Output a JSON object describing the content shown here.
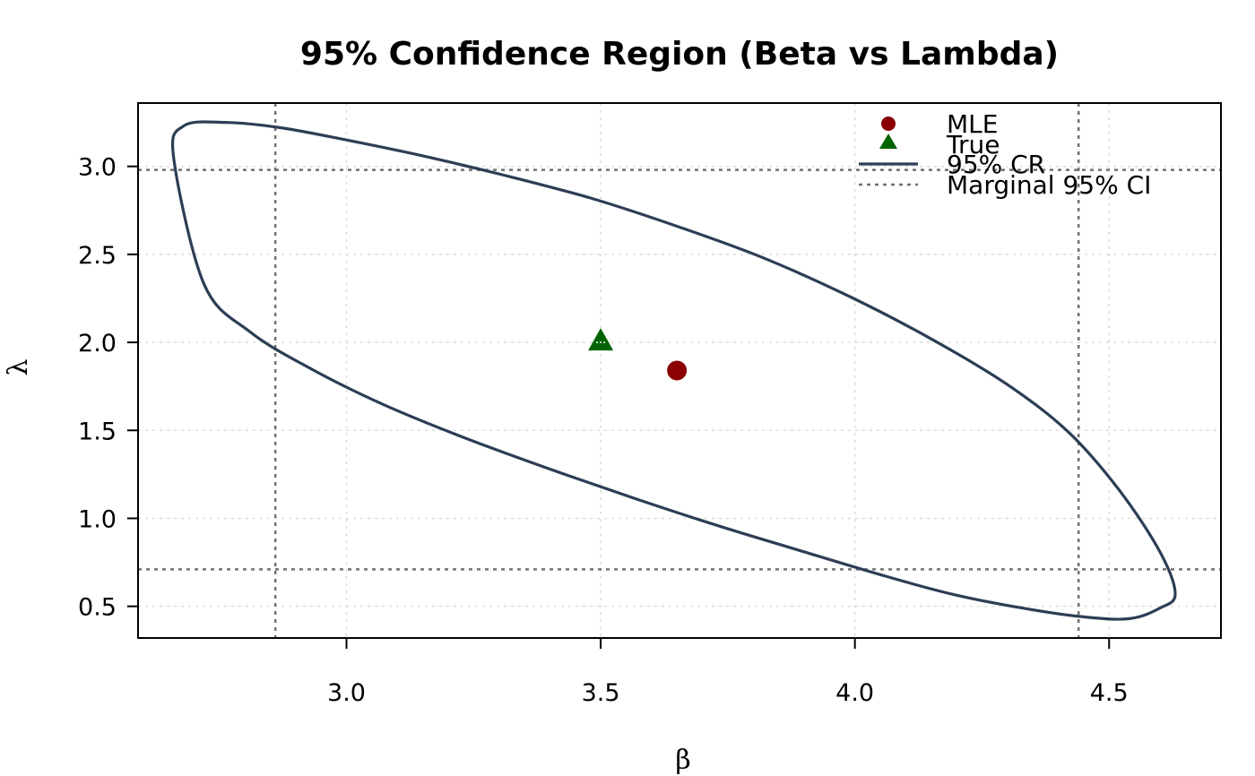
{
  "chart_data": {
    "type": "scatter",
    "title": "95% Confidence Region (Beta vs Lambda)",
    "xlabel": "β",
    "ylabel": "λ",
    "xlim": [
      2.59,
      4.72
    ],
    "ylim": [
      0.32,
      3.36
    ],
    "xticks": [
      3.0,
      3.5,
      4.0,
      4.5
    ],
    "xtick_labels": [
      "3.0",
      "3.5",
      "4.0",
      "4.5"
    ],
    "yticks": [
      0.5,
      1.0,
      1.5,
      2.0,
      2.5,
      3.0
    ],
    "ytick_labels": [
      "0.5",
      "1.0",
      "1.5",
      "2.0",
      "2.5",
      "3.0"
    ],
    "grid": true,
    "legend_position": "top-right",
    "mle": {
      "beta": 3.65,
      "lambda": 1.84,
      "color": "#8B0000"
    },
    "true_value": {
      "beta": 3.5,
      "lambda": 2.01,
      "color": "#006400"
    },
    "confidence_region": {
      "label": "95% CR",
      "color": "#2C3E55",
      "beta": [
        4.63,
        4.6,
        4.54,
        4.45,
        4.33,
        4.19,
        4.05,
        3.9,
        3.74,
        3.57,
        3.4,
        3.23,
        3.07,
        2.93,
        2.81,
        2.72,
        2.66,
        2.68,
        2.76,
        2.87,
        3.0,
        3.15,
        3.31,
        3.48,
        3.65,
        3.82,
        3.99,
        4.15,
        4.3,
        4.42,
        4.52,
        4.6,
        4.63
      ],
      "lambda": [
        0.57,
        0.49,
        0.43,
        0.44,
        0.49,
        0.57,
        0.68,
        0.81,
        0.95,
        1.11,
        1.28,
        1.46,
        1.65,
        1.85,
        2.06,
        2.33,
        3.05,
        3.23,
        3.25,
        3.22,
        3.15,
        3.06,
        2.95,
        2.82,
        2.66,
        2.48,
        2.26,
        2.02,
        1.76,
        1.49,
        1.16,
        0.81,
        0.57
      ]
    },
    "marginal_ci": {
      "label": "Marginal 95% CI",
      "color": "#707070",
      "beta": [
        2.86,
        4.44
      ],
      "lambda": [
        0.71,
        2.98
      ]
    },
    "legend": [
      "MLE",
      "True",
      "95% CR",
      "Marginal 95% CI"
    ]
  }
}
